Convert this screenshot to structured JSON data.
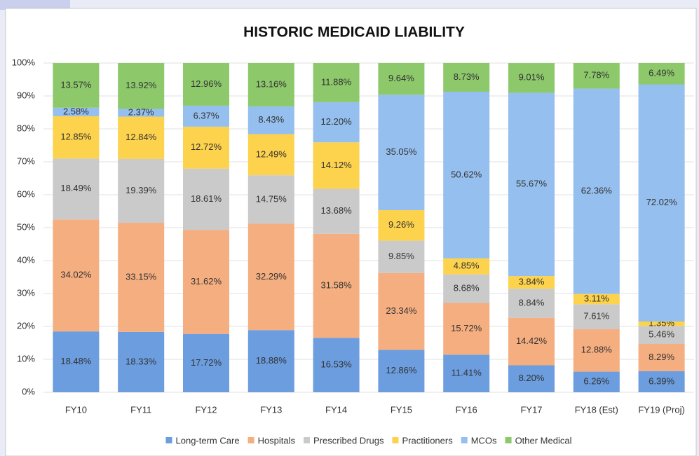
{
  "chart_data": {
    "type": "stacked_bar",
    "title": "HISTORIC  MEDICAID  LIABILITY",
    "categories": [
      "FY10",
      "FY11",
      "FY12",
      "FY13",
      "FY14",
      "FY15",
      "FY16",
      "FY17",
      "FY18 (Est)",
      "FY19 (Proj)"
    ],
    "series": [
      {
        "name": "Long-term Care",
        "color": "#6b9ddf",
        "values": [
          18.48,
          18.33,
          17.72,
          18.88,
          16.53,
          12.86,
          11.41,
          8.2,
          6.26,
          6.39
        ],
        "value_labels": [
          "18.48%",
          "18.33%",
          "17.72%",
          "18.88%",
          "16.53%",
          "12.86%",
          "11.41%",
          "8.20%",
          "6.26%",
          "6.39%"
        ]
      },
      {
        "name": "Hospitals",
        "color": "#f5ae80",
        "values": [
          34.02,
          33.15,
          31.62,
          32.29,
          31.58,
          23.34,
          15.72,
          14.42,
          12.88,
          8.29
        ],
        "value_labels": [
          "34.02%",
          "33.15%",
          "31.62%",
          "32.29%",
          "31.58%",
          "23.34%",
          "15.72%",
          "14.42%",
          "12.88%",
          "8.29%"
        ]
      },
      {
        "name": "Prescribed Drugs",
        "color": "#cacaca",
        "values": [
          18.49,
          19.39,
          18.61,
          14.75,
          13.68,
          9.85,
          8.68,
          8.84,
          7.61,
          5.46
        ],
        "value_labels": [
          "18.49%",
          "19.39%",
          "18.61%",
          "14.75%",
          "13.68%",
          "9.85%",
          "8.68%",
          "8.84%",
          "7.61%",
          "5.46%"
        ]
      },
      {
        "name": "Practitioners",
        "color": "#fdd24c",
        "values": [
          12.85,
          12.84,
          12.72,
          12.49,
          14.12,
          9.26,
          4.85,
          3.84,
          3.11,
          1.35
        ],
        "value_labels": [
          "12.85%",
          "12.84%",
          "12.72%",
          "12.49%",
          "14.12%",
          "9.26%",
          "4.85%",
          "3.84%",
          "3.11%",
          "1.35%"
        ]
      },
      {
        "name": "MCOs",
        "color": "#95bfee",
        "values": [
          2.58,
          2.37,
          6.37,
          8.43,
          12.2,
          35.05,
          50.62,
          55.67,
          62.36,
          72.02
        ],
        "value_labels": [
          "2.58%",
          "2.37%",
          "6.37%",
          "8.43%",
          "12.20%",
          "35.05%",
          "50.62%",
          "55.67%",
          "62.36%",
          "72.02%"
        ]
      },
      {
        "name": "Other Medical",
        "color": "#8dc86b",
        "values": [
          13.57,
          13.92,
          12.96,
          13.16,
          11.88,
          9.64,
          8.73,
          9.01,
          7.78,
          6.49
        ],
        "value_labels": [
          "13.57%",
          "13.92%",
          "12.96%",
          "13.16%",
          "11.88%",
          "9.64%",
          "8.73%",
          "9.01%",
          "7.78%",
          "6.49%"
        ]
      }
    ],
    "ylim": [
      0,
      100
    ],
    "yticks": [
      {
        "value": 0,
        "label": "0%"
      },
      {
        "value": 10,
        "label": "10%"
      },
      {
        "value": 20,
        "label": "20%"
      },
      {
        "value": 30,
        "label": "30%"
      },
      {
        "value": 40,
        "label": "40%"
      },
      {
        "value": 50,
        "label": "50%"
      },
      {
        "value": 60,
        "label": "60%"
      },
      {
        "value": 70,
        "label": "70%"
      },
      {
        "value": 80,
        "label": "80%"
      },
      {
        "value": 90,
        "label": "90%"
      },
      {
        "value": 100,
        "label": "100%"
      }
    ],
    "grid": true,
    "legend": "bottom"
  }
}
